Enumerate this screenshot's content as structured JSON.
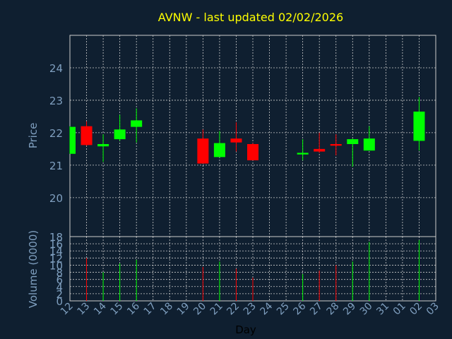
{
  "chart_data": {
    "type": "candlestick",
    "title": "AVNW - last updated 02/02/2026",
    "xlabel": "Day",
    "price_axis": {
      "label": "Price",
      "ylim": [
        18.8,
        25.0
      ],
      "ticks": [
        20,
        21,
        22,
        23,
        24
      ]
    },
    "volume_axis": {
      "label": "Volume (0000)",
      "ylim": [
        0,
        18
      ],
      "ticks": [
        0,
        2,
        4,
        6,
        8,
        10,
        12,
        14,
        16,
        18
      ]
    },
    "x_ticks": [
      "12",
      "13",
      "14",
      "15",
      "16",
      "17",
      "18",
      "19",
      "20",
      "21",
      "22",
      "23",
      "24",
      "25",
      "26",
      "27",
      "28",
      "29",
      "30",
      "31",
      "01",
      "02",
      "03"
    ],
    "grid": true,
    "colors": {
      "up": "#00ff00",
      "down": "#ff0000",
      "title": "#ffff00",
      "axis_text": "#7f9fbf",
      "background": "#0f1f30",
      "grid": "#cccccc"
    },
    "candles": [
      {
        "day": "12",
        "open": 21.35,
        "high": 22.2,
        "low": 21.35,
        "close": 22.18,
        "volume": 0
      },
      {
        "day": "13",
        "open": 22.2,
        "high": 22.35,
        "low": 21.6,
        "close": 21.62,
        "volume": 12
      },
      {
        "day": "14",
        "open": 21.58,
        "high": 21.95,
        "low": 21.1,
        "close": 21.65,
        "volume": 8
      },
      {
        "day": "15",
        "open": 21.8,
        "high": 22.55,
        "low": 21.75,
        "close": 22.1,
        "volume": 10.5
      },
      {
        "day": "16",
        "open": 22.18,
        "high": 22.75,
        "low": 21.7,
        "close": 22.38,
        "volume": 11.5
      },
      {
        "day": "20",
        "open": 21.82,
        "high": 22.1,
        "low": 21.05,
        "close": 21.05,
        "volume": 9.5
      },
      {
        "day": "21",
        "open": 21.25,
        "high": 22.05,
        "low": 21.25,
        "close": 21.68,
        "volume": 11
      },
      {
        "day": "22",
        "open": 21.82,
        "high": 22.32,
        "low": 21.42,
        "close": 21.7,
        "volume": 9
      },
      {
        "day": "23",
        "open": 21.65,
        "high": 21.68,
        "low": 21.15,
        "close": 21.15,
        "volume": 6.5
      },
      {
        "day": "26",
        "open": 21.33,
        "high": 21.8,
        "low": 21.15,
        "close": 21.38,
        "volume": 7.5
      },
      {
        "day": "27",
        "open": 21.5,
        "high": 22.0,
        "low": 21.38,
        "close": 21.42,
        "volume": 8.5
      },
      {
        "day": "28",
        "open": 21.65,
        "high": 21.95,
        "low": 21.3,
        "close": 21.6,
        "volume": 10
      },
      {
        "day": "29",
        "open": 21.65,
        "high": 21.82,
        "low": 20.95,
        "close": 21.8,
        "volume": 11
      },
      {
        "day": "30",
        "open": 21.45,
        "high": 22.2,
        "low": 21.45,
        "close": 21.82,
        "volume": 16.5
      },
      {
        "day": "02",
        "open": 21.75,
        "high": 23.1,
        "low": 21.45,
        "close": 22.65,
        "volume": 17
      }
    ]
  }
}
